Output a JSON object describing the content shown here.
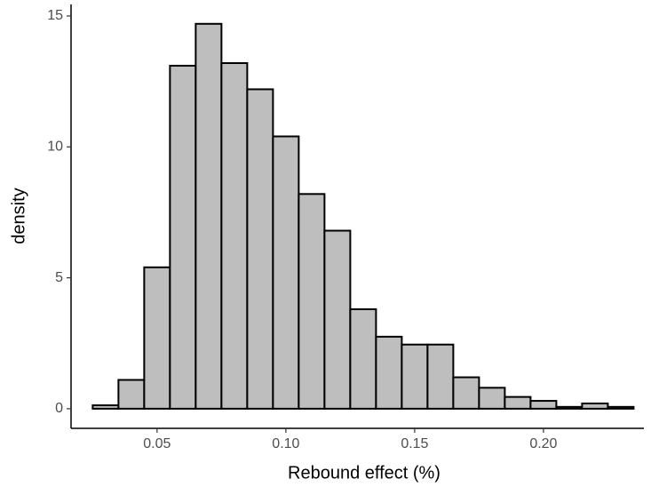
{
  "chart_data": {
    "type": "histogram",
    "x_label": "Rebound effect (%)",
    "y_label": "density",
    "bins": [
      0.025,
      0.035,
      0.045,
      0.055,
      0.065,
      0.075,
      0.085,
      0.095,
      0.105,
      0.115,
      0.125,
      0.135,
      0.145,
      0.155,
      0.165,
      0.175,
      0.185,
      0.195,
      0.205,
      0.215,
      0.225,
      0.235
    ],
    "values": [
      0.13,
      1.1,
      5.4,
      13.1,
      14.7,
      13.2,
      12.2,
      10.4,
      8.2,
      6.8,
      3.8,
      2.75,
      2.45,
      2.45,
      1.2,
      0.8,
      0.45,
      0.3,
      0.07,
      0.2,
      0.07
    ],
    "color": "#bebebe",
    "xlim": [
      0.0166,
      0.239
    ],
    "ylim": [
      -0.75,
      15.44
    ],
    "xticks": [
      0.05,
      {
        "value": 0.1,
        "label": "0.10"
      },
      0.15,
      {
        "value": 0.2,
        "label": "0.20"
      }
    ],
    "yticks": [
      0,
      5,
      10,
      15
    ]
  }
}
